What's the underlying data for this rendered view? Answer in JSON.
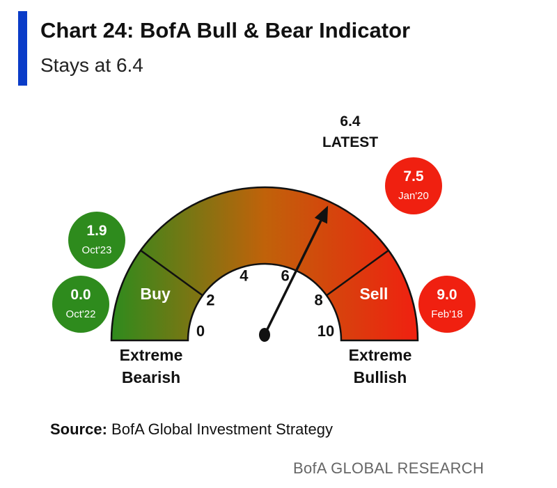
{
  "header": {
    "title": "Chart 24: BofA Bull & Bear Indicator",
    "subtitle": "Stays at 6.4"
  },
  "footer": {
    "source_label": "Source:",
    "source_text": "BofA Global Investment Strategy",
    "brand": "BofA GLOBAL RESEARCH"
  },
  "colors": {
    "accent": "#0a3cc8",
    "gauge_low": "#2e8b1d",
    "gauge_mid": "#c0620a",
    "gauge_high": "#f02010",
    "bearish_bubble": "#2e8b1d",
    "bullish_bubble": "#f02010"
  },
  "chart_data": {
    "type": "gauge",
    "range": [
      0,
      10
    ],
    "ticks": [
      "0",
      "2",
      "4",
      "6",
      "8",
      "10"
    ],
    "zone_dividers": [
      2,
      8
    ],
    "zones": [
      {
        "label": "Buy",
        "from": 0,
        "to": 2
      },
      {
        "label": "Sell",
        "from": 8,
        "to": 10
      }
    ],
    "end_labels": {
      "left": [
        "Extreme",
        "Bearish"
      ],
      "right": [
        "Extreme",
        "Bullish"
      ]
    },
    "latest": {
      "value": 6.4,
      "value_label": "6.4",
      "label": "LATEST"
    },
    "history_markers": [
      {
        "value": "1.9",
        "date": "Oct'23",
        "side": "bearish"
      },
      {
        "value": "0.0",
        "date": "Oct'22",
        "side": "bearish"
      },
      {
        "value": "7.5",
        "date": "Jan'20",
        "side": "bullish"
      },
      {
        "value": "9.0",
        "date": "Feb'18",
        "side": "bullish"
      }
    ]
  }
}
